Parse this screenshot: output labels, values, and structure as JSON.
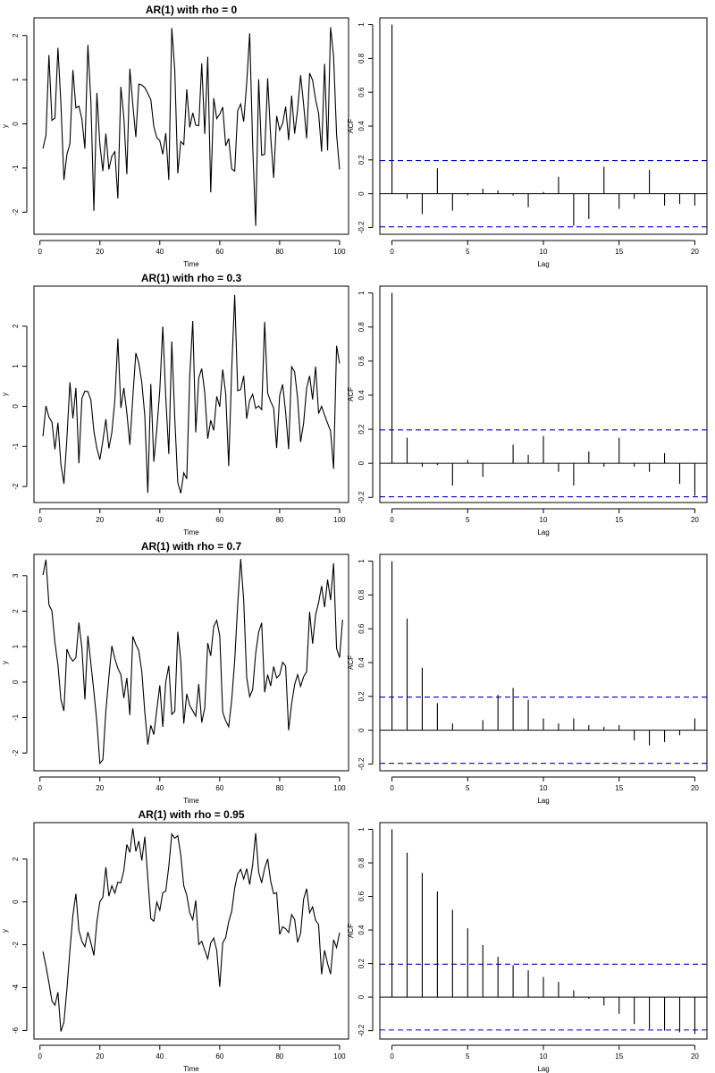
{
  "chart_data": [
    {
      "type": "line",
      "title": "AR(1) with rho = 0",
      "xlabel": "Time",
      "ylabel": "y",
      "xlim": [
        -2,
        103
      ],
      "ylim": [
        -2.5,
        2.4
      ],
      "xticks": [
        0,
        20,
        40,
        60,
        80,
        100
      ],
      "yticks": [
        -2,
        -1,
        0,
        1,
        2
      ],
      "x_start": 1,
      "values": [
        -0.56,
        -0.26,
        1.56,
        0.08,
        0.13,
        1.72,
        0.46,
        -1.27,
        -0.69,
        -0.45,
        1.22,
        0.36,
        0.4,
        0.11,
        -0.56,
        1.79,
        0.5,
        -1.97,
        0.7,
        -0.47,
        -1.07,
        -0.22,
        -1.03,
        -0.73,
        -0.63,
        -1.69,
        0.84,
        0.15,
        -1.14,
        1.25,
        0.43,
        -0.3,
        0.9,
        0.88,
        0.82,
        0.69,
        0.55,
        -0.06,
        -0.31,
        -0.38,
        -0.69,
        -0.21,
        -1.27,
        2.17,
        1.21,
        -1.12,
        -0.4,
        -0.47,
        0.78,
        -0.08,
        0.25,
        -0.03,
        -0.04,
        1.37,
        -0.23,
        1.52,
        -1.55,
        0.58,
        0.12,
        0.22,
        0.38,
        -0.5,
        -0.33,
        -1.02,
        -1.07,
        0.3,
        0.45,
        0.05,
        0.92,
        2.05,
        -0.49,
        -2.31,
        1.01,
        -0.71,
        -0.69,
        1.03,
        -0.28,
        -1.22,
        0.18,
        -0.14,
        0.01,
        0.39,
        -0.37,
        0.64,
        -0.22,
        0.33,
        1.1,
        0.44,
        -0.33,
        1.15,
        0.99,
        0.55,
        0.24,
        -0.63,
        1.36,
        -0.6,
        2.19,
        1.53,
        -0.24,
        -1.03
      ]
    },
    {
      "type": "bar",
      "title": "ACF for rho = 0",
      "xlabel": "Lag",
      "ylabel": "ACF",
      "xlim": [
        -0.8,
        20.8
      ],
      "ylim": [
        -0.24,
        1.04
      ],
      "xticks": [
        0,
        5,
        10,
        15,
        20
      ],
      "yticks": [
        -0.2,
        0.0,
        0.2,
        0.4,
        0.6,
        0.8,
        1.0
      ],
      "ci": 0.196,
      "lags": [
        0,
        1,
        2,
        3,
        4,
        5,
        6,
        7,
        8,
        9,
        10,
        11,
        12,
        13,
        14,
        15,
        16,
        17,
        18,
        19,
        20
      ],
      "values": [
        1.0,
        -0.03,
        -0.12,
        0.15,
        -0.1,
        -0.01,
        0.03,
        0.02,
        -0.01,
        -0.08,
        0.01,
        0.1,
        -0.19,
        -0.15,
        0.16,
        -0.09,
        -0.03,
        0.14,
        -0.07,
        -0.06,
        -0.07
      ]
    },
    {
      "type": "line",
      "title": "AR(1) with rho = 0.3",
      "xlabel": "Time",
      "ylabel": "y",
      "xlim": [
        -2,
        103
      ],
      "ylim": [
        -2.4,
        3.0
      ],
      "xticks": [
        0,
        20,
        40,
        60,
        80,
        100
      ],
      "yticks": [
        -2,
        -1,
        0,
        1,
        2
      ],
      "x_start": 1,
      "values": [
        -0.75,
        0.01,
        -0.27,
        -0.39,
        -1.07,
        -0.41,
        -1.45,
        -1.93,
        -0.79,
        0.6,
        -0.3,
        0.46,
        -1.42,
        0.2,
        0.38,
        0.37,
        0.16,
        -0.62,
        -1.05,
        -1.33,
        -0.86,
        -0.32,
        -1.05,
        -0.65,
        0.16,
        1.69,
        -0.04,
        0.46,
        -0.16,
        -0.96,
        0.23,
        1.33,
        1.08,
        0.59,
        -0.24,
        -2.16,
        0.56,
        -1.38,
        -0.57,
        0.41,
        1.99,
        0.22,
        -1.19,
        1.62,
        -0.3,
        -1.9,
        -2.17,
        -1.66,
        -1.81,
        0.76,
        2.13,
        -0.65,
        0.71,
        0.94,
        0.34,
        -0.81,
        -0.35,
        -0.6,
        0.25,
        -0.01,
        0.92,
        0.31,
        -1.49,
        0.92,
        2.78,
        0.39,
        0.42,
        0.76,
        -0.31,
        0.15,
        0.3,
        -0.05,
        0.01,
        -0.08,
        2.11,
        0.33,
        0.12,
        -0.04,
        -1.04,
        0.27,
        0.55,
        -0.15,
        -1.07,
        0.99,
        0.86,
        0.2,
        -0.89,
        -0.42,
        0.45,
        0.76,
        0.17,
        0.99,
        -0.18,
        0.0,
        -0.22,
        -0.42,
        -0.62,
        -1.56,
        1.51,
        1.07
      ]
    },
    {
      "type": "bar",
      "title": "ACF for rho = 0.3",
      "xlabel": "Lag",
      "ylabel": "ACF",
      "xlim": [
        -0.8,
        20.8
      ],
      "ylim": [
        -0.23,
        1.04
      ],
      "xticks": [
        0,
        5,
        10,
        15,
        20
      ],
      "yticks": [
        -0.2,
        0.0,
        0.2,
        0.4,
        0.6,
        0.8,
        1.0
      ],
      "ci": 0.196,
      "lags": [
        0,
        1,
        2,
        3,
        4,
        5,
        6,
        7,
        8,
        9,
        10,
        11,
        12,
        13,
        14,
        15,
        16,
        17,
        18,
        19,
        20
      ],
      "values": [
        1.0,
        0.15,
        -0.02,
        -0.01,
        -0.13,
        0.02,
        -0.08,
        0.0,
        0.11,
        0.05,
        0.16,
        -0.05,
        -0.13,
        0.07,
        -0.02,
        0.15,
        -0.02,
        -0.05,
        0.06,
        -0.12,
        -0.19
      ]
    },
    {
      "type": "line",
      "title": "AR(1) with rho = 0.7",
      "xlabel": "Time",
      "ylabel": "y",
      "xlim": [
        -2,
        103
      ],
      "ylim": [
        -2.5,
        3.6
      ],
      "xticks": [
        0,
        20,
        40,
        60,
        80,
        100
      ],
      "yticks": [
        -2,
        -1,
        0,
        1,
        2,
        3
      ],
      "x_start": 1,
      "values": [
        3.02,
        3.45,
        2.18,
        2.01,
        1.11,
        0.49,
        -0.5,
        -0.81,
        0.93,
        0.71,
        0.59,
        0.69,
        1.68,
        0.96,
        -0.49,
        1.31,
        0.52,
        -0.27,
        -1.13,
        -2.29,
        -2.19,
        -0.81,
        0.14,
        1.02,
        0.66,
        0.39,
        0.21,
        -0.45,
        0.12,
        -0.93,
        1.29,
        1.06,
        0.88,
        0.29,
        -0.85,
        -1.76,
        -1.22,
        -1.48,
        -0.78,
        -0.09,
        -1.26,
        0.01,
        0.46,
        -0.91,
        -0.82,
        1.42,
        0.61,
        -1.17,
        -0.33,
        -0.66,
        -0.81,
        -0.96,
        -0.06,
        -1.14,
        -0.73,
        1.1,
        0.74,
        1.57,
        1.74,
        1.31,
        -0.85,
        -1.09,
        -1.26,
        -0.5,
        0.61,
        2.19,
        3.47,
        2.31,
        0.13,
        -0.41,
        -0.21,
        0.81,
        1.41,
        1.67,
        -0.29,
        0.21,
        -0.11,
        0.44,
        0.12,
        0.2,
        0.56,
        0.45,
        -1.36,
        -0.61,
        -0.07,
        0.21,
        -0.12,
        0.15,
        0.29,
        1.98,
        1.08,
        1.9,
        2.24,
        2.71,
        2.11,
        2.89,
        2.31,
        3.35,
        0.95,
        0.69,
        1.76
      ]
    },
    {
      "type": "bar",
      "title": "ACF for rho = 0.7",
      "xlabel": "Lag",
      "ylabel": "ACF",
      "xlim": [
        -0.8,
        20.8
      ],
      "ylim": [
        -0.24,
        1.04
      ],
      "xticks": [
        0,
        5,
        10,
        15,
        20
      ],
      "yticks": [
        -0.2,
        0.0,
        0.2,
        0.4,
        0.6,
        0.8,
        1.0
      ],
      "ci": 0.196,
      "lags": [
        0,
        1,
        2,
        3,
        4,
        5,
        6,
        7,
        8,
        9,
        10,
        11,
        12,
        13,
        14,
        15,
        16,
        17,
        18,
        19,
        20
      ],
      "values": [
        1.0,
        0.66,
        0.37,
        0.16,
        0.04,
        0.0,
        0.06,
        0.21,
        0.25,
        0.18,
        0.07,
        0.04,
        0.07,
        0.03,
        0.02,
        0.03,
        -0.06,
        -0.09,
        -0.07,
        -0.03,
        0.07
      ]
    },
    {
      "type": "line",
      "title": "AR(1) with rho = 0.95",
      "xlabel": "Time",
      "ylabel": "y",
      "xlim": [
        -2,
        103
      ],
      "ylim": [
        -6.4,
        3.7
      ],
      "xticks": [
        0,
        20,
        40,
        60,
        80,
        100
      ],
      "yticks": [
        -6,
        -4,
        -2,
        0,
        2
      ],
      "x_start": 1,
      "values": [
        -2.32,
        -3.0,
        -3.77,
        -4.62,
        -4.82,
        -4.22,
        -6.05,
        -5.62,
        -4.07,
        -2.26,
        -0.61,
        0.38,
        -1.33,
        -1.84,
        -2.09,
        -1.41,
        -1.91,
        -2.5,
        -0.92,
        0.01,
        0.22,
        1.62,
        0.27,
        0.75,
        0.41,
        0.92,
        0.89,
        1.47,
        2.68,
        2.31,
        3.43,
        2.36,
        2.84,
        1.93,
        3.04,
        1.11,
        -0.78,
        -0.9,
        -0.01,
        -0.39,
        0.43,
        0.51,
        1.66,
        3.17,
        2.97,
        3.09,
        2.19,
        0.75,
        0.32,
        -0.51,
        -0.83,
        0.07,
        -1.99,
        -1.84,
        -2.26,
        -2.66,
        -1.91,
        -1.69,
        -2.26,
        -3.96,
        -1.91,
        -1.66,
        -0.92,
        -0.44,
        0.65,
        1.31,
        1.52,
        1.07,
        1.55,
        0.81,
        1.75,
        3.21,
        1.38,
        0.89,
        1.58,
        2.01,
        0.97,
        0.38,
        0.43,
        -1.52,
        -1.16,
        -1.25,
        -1.43,
        -0.59,
        -0.82,
        -1.89,
        -1.46,
        0.13,
        0.62,
        -0.51,
        -0.23,
        -0.86,
        -1.06,
        -3.38,
        -2.26,
        -2.88,
        -3.37,
        -1.77,
        -2.13,
        -1.44
      ]
    },
    {
      "type": "bar",
      "title": "ACF for rho = 0.95",
      "xlabel": "Lag",
      "ylabel": "ACF",
      "xlim": [
        -0.8,
        20.8
      ],
      "ylim": [
        -0.25,
        1.04
      ],
      "xticks": [
        0,
        5,
        10,
        15,
        20
      ],
      "yticks": [
        -0.2,
        0.0,
        0.2,
        0.4,
        0.6,
        0.8,
        1.0
      ],
      "ci": 0.196,
      "lags": [
        0,
        1,
        2,
        3,
        4,
        5,
        6,
        7,
        8,
        9,
        10,
        11,
        12,
        13,
        14,
        15,
        16,
        17,
        18,
        19,
        20
      ],
      "values": [
        1.0,
        0.86,
        0.74,
        0.63,
        0.52,
        0.41,
        0.31,
        0.24,
        0.19,
        0.16,
        0.12,
        0.09,
        0.04,
        -0.01,
        -0.05,
        -0.1,
        -0.16,
        -0.19,
        -0.2,
        -0.21,
        -0.22
      ]
    }
  ]
}
